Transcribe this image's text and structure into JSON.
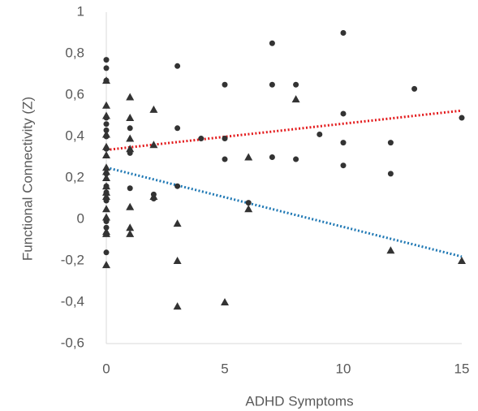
{
  "chart_data": {
    "type": "scatter",
    "x_label": "ADHD Symptoms",
    "y_label": "Functional Connectivity (Z)",
    "xlim": [
      0,
      15
    ],
    "xticks": [
      0,
      5,
      10,
      15
    ],
    "ylim": [
      -0.6,
      1
    ],
    "yticks": [
      {
        "value": -0.6,
        "label": "-0,6"
      },
      {
        "value": -0.4,
        "label": "-0,4"
      },
      {
        "value": -0.2,
        "label": "-0,2"
      },
      0,
      {
        "value": 0.2,
        "label": "0,2"
      },
      {
        "value": 0.4,
        "label": "0,4"
      },
      {
        "value": 0.6,
        "label": "0,6"
      },
      {
        "value": 0.8,
        "label": "0,8"
      },
      1
    ],
    "series": [
      {
        "marker": "circle",
        "color": "#333333",
        "x": [
          0,
          0,
          0,
          0,
          0,
          0,
          0,
          0,
          0,
          0,
          0,
          0,
          0,
          0,
          0,
          0,
          0,
          1,
          1,
          1,
          1,
          2,
          2,
          3,
          3,
          3,
          4,
          5,
          5,
          5,
          6,
          7,
          7,
          7,
          8,
          8,
          9,
          10,
          10,
          10,
          10,
          12,
          12,
          13,
          15
        ],
        "values": [
          0.77,
          0.73,
          0.67,
          0.49,
          0.46,
          0.43,
          0.4,
          0.34,
          0.22,
          0.16,
          0.13,
          0.09,
          0.0,
          -0.01,
          -0.04,
          -0.07,
          -0.16,
          0.44,
          0.33,
          0.32,
          0.15,
          0.12,
          0.1,
          0.74,
          0.44,
          0.16,
          0.39,
          0.65,
          0.39,
          0.29,
          0.08,
          0.85,
          0.65,
          0.3,
          0.65,
          0.29,
          0.41,
          0.9,
          0.51,
          0.37,
          0.26,
          0.37,
          0.22,
          0.63,
          0.49
        ]
      },
      {
        "marker": "triangle",
        "color": "#333333",
        "x": [
          0,
          0,
          0,
          0,
          0,
          0,
          0,
          0,
          0,
          0,
          0,
          0,
          0,
          0,
          0,
          0,
          0,
          1,
          1,
          1,
          1,
          1,
          1,
          1,
          2,
          2,
          2,
          3,
          3,
          3,
          5,
          6,
          6,
          8,
          12,
          15
        ],
        "values": [
          0.67,
          0.55,
          0.5,
          0.41,
          0.35,
          0.31,
          0.25,
          0.23,
          0.2,
          0.16,
          0.13,
          0.11,
          0.05,
          0.01,
          -0.06,
          -0.07,
          -0.22,
          0.59,
          0.49,
          0.39,
          0.34,
          0.06,
          -0.04,
          -0.07,
          0.53,
          0.36,
          0.11,
          -0.02,
          -0.2,
          -0.42,
          -0.4,
          0.3,
          0.05,
          0.58,
          -0.15,
          -0.2
        ]
      }
    ],
    "trendlines": [
      {
        "color": "#e31a1c",
        "x": [
          0,
          15
        ],
        "values": [
          0.335,
          0.525
        ]
      },
      {
        "color": "#1f78b4",
        "x": [
          0,
          15
        ],
        "values": [
          0.25,
          -0.18
        ]
      }
    ]
  }
}
